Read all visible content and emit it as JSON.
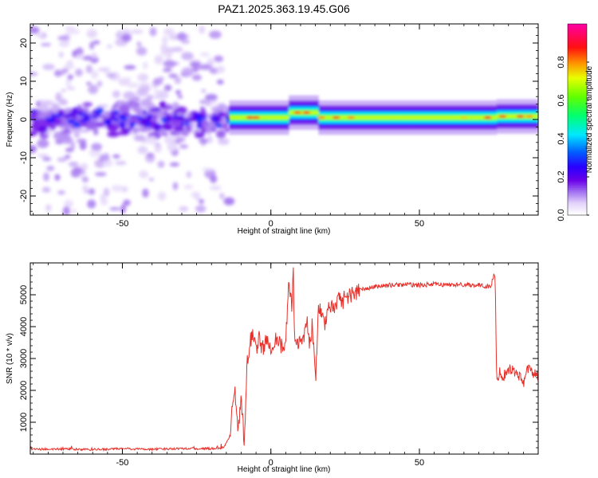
{
  "title": "PAZ1.2025.363.19.45.G06",
  "chart_data": [
    {
      "type": "heatmap",
      "title": "PAZ1.2025.363.19.45.G06",
      "xlabel": "Height of straight line (km)",
      "ylabel": "Frequency (Hz)",
      "xlim": [
        -81,
        90
      ],
      "ylim": [
        -25,
        25
      ],
      "xticks": [
        -50,
        0,
        50
      ],
      "yticks": [
        -20,
        -10,
        0,
        10,
        20
      ],
      "colorbar": {
        "label": "Normalized spectral amplitude",
        "range": [
          0,
          1
        ],
        "ticks": [
          0.0,
          0.2,
          0.4,
          0.6,
          0.8
        ],
        "colormap": "rainbow (white-violet-blue-cyan-green-yellow-red-magenta)"
      },
      "regions": [
        {
          "x_range": [
            -81,
            -14
          ],
          "description": "scattered low-amplitude noise",
          "core_freq": [
            -5,
            5
          ],
          "max_amplitude": 0.3
        },
        {
          "x_range": [
            -14,
            90
          ],
          "description": "narrow signal band near 0 Hz",
          "center_freq": 0.5,
          "bandwidth": 3,
          "max_amplitude": 0.9
        }
      ]
    },
    {
      "type": "line",
      "xlabel": "Height of straight line (km)",
      "ylabel": "SNR (10 * v/v)",
      "xlim": [
        -81,
        90
      ],
      "ylim": [
        0,
        6000
      ],
      "xticks": [
        -50,
        0,
        50
      ],
      "yticks": [
        1000,
        2000,
        3000,
        4000,
        5000
      ],
      "series": [
        {
          "name": "SNR",
          "color": "#e8302a",
          "x": [
            -81,
            -70,
            -60,
            -50,
            -40,
            -30,
            -20,
            -16,
            -14,
            -13,
            -12,
            -11,
            -10,
            -9,
            -8,
            -7,
            -6,
            -5,
            -4,
            -3,
            -2,
            0,
            2,
            4,
            5,
            6,
            7,
            7.5,
            8,
            10,
            11,
            12,
            13,
            14,
            15,
            16,
            17,
            18,
            19,
            20,
            21,
            22,
            23,
            24,
            25,
            27,
            30,
            35,
            40,
            45,
            50,
            55,
            60,
            65,
            70,
            74,
            75,
            75.5,
            76,
            77,
            78,
            80,
            82,
            84,
            85,
            86,
            88,
            90
          ],
          "y": [
            150,
            160,
            140,
            170,
            150,
            180,
            170,
            200,
            500,
            1400,
            2000,
            600,
            1800,
            300,
            2800,
            3500,
            3900,
            3300,
            3600,
            3300,
            3500,
            3400,
            3700,
            3300,
            3500,
            5300,
            4600,
            5900,
            3500,
            3600,
            3600,
            4300,
            3400,
            4100,
            2300,
            4400,
            4500,
            4000,
            4600,
            4500,
            4700,
            4600,
            5100,
            4800,
            4900,
            5000,
            5150,
            5250,
            5300,
            5320,
            5300,
            5330,
            5310,
            5320,
            5300,
            5250,
            5600,
            5500,
            2300,
            2600,
            2400,
            2700,
            2600,
            2400,
            2200,
            2700,
            2600,
            2400
          ]
        }
      ]
    }
  ]
}
